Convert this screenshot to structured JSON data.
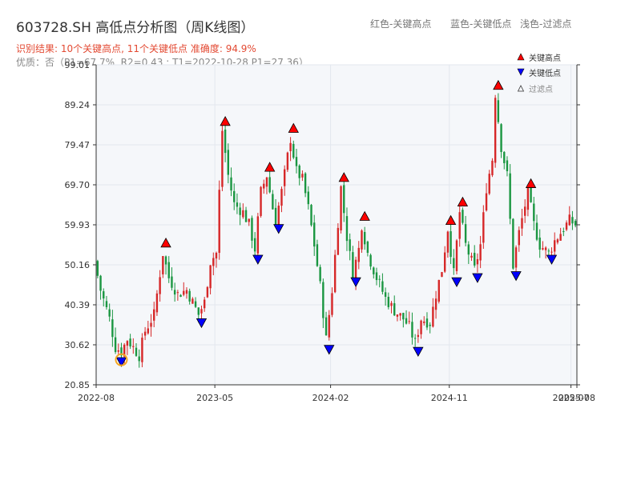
{
  "header": {
    "title": "603728.SH 高低点分析图（周K线图）",
    "summary": "识别结果: 10个关键高点, 11个关键低点  准确度: 94.9%",
    "quality": "优质：否（P1=67.7%, R2=0.43 ; T1=2022-10-28 P1=27.36）",
    "legend_red": "红色-关键高点",
    "legend_blue": "蓝色-关键低点",
    "legend_faint": "浅色-过滤点"
  },
  "colors": {
    "up": "#d62728",
    "down": "#1a9641",
    "high_marker": "#ff0000",
    "low_marker": "#0000ff",
    "highlight_ring": "#f5a623",
    "plot_bg": "#f5f7fa",
    "grid": "#e3e7ee"
  },
  "chart_data": {
    "type": "candlestick",
    "y_ticks": [
      "99.01",
      "89.24",
      "79.47",
      "69.70",
      "59.93",
      "50.16",
      "40.39",
      "30.62",
      "20.85"
    ],
    "ylim": [
      20.85,
      99.01
    ],
    "x_ticks": [
      "2022-08",
      "2023-05",
      "2024-02",
      "2024-11",
      "2025-07",
      "2025-08"
    ],
    "x_tick_weeks": [
      0,
      40,
      79,
      119,
      160,
      162
    ],
    "total_weeks": 162,
    "legend": {
      "high": "关键高点",
      "low": "关键低点",
      "filtered": "过滤点"
    },
    "key_highs": [
      {
        "week": 23,
        "price": 54.5
      },
      {
        "week": 43,
        "price": 84.2
      },
      {
        "week": 58,
        "price": 73.0
      },
      {
        "week": 66,
        "price": 82.5
      },
      {
        "week": 83,
        "price": 70.5
      },
      {
        "week": 90,
        "price": 61.0
      },
      {
        "week": 119,
        "price": 60.0
      },
      {
        "week": 123,
        "price": 64.5
      },
      {
        "week": 135,
        "price": 93.0
      },
      {
        "week": 146,
        "price": 69.0
      }
    ],
    "key_lows": [
      {
        "week": 8,
        "price": 27.5
      },
      {
        "week": 35,
        "price": 37.0
      },
      {
        "week": 54,
        "price": 52.5
      },
      {
        "week": 61,
        "price": 60.0
      },
      {
        "week": 78,
        "price": 30.5
      },
      {
        "week": 87,
        "price": 47.0
      },
      {
        "week": 108,
        "price": 30.0
      },
      {
        "week": 121,
        "price": 47.0
      },
      {
        "week": 128,
        "price": 48.0
      },
      {
        "week": 141,
        "price": 48.5
      },
      {
        "week": 153,
        "price": 52.5
      }
    ],
    "highlight": {
      "week": 8,
      "price": 27.36
    },
    "anchors": [
      [
        0,
        51
      ],
      [
        2,
        44
      ],
      [
        5,
        37
      ],
      [
        7,
        30
      ],
      [
        9,
        29
      ],
      [
        11,
        32
      ],
      [
        13,
        30
      ],
      [
        15,
        28
      ],
      [
        17,
        34
      ],
      [
        20,
        38
      ],
      [
        23,
        53
      ],
      [
        25,
        47
      ],
      [
        28,
        43
      ],
      [
        31,
        44
      ],
      [
        33,
        41
      ],
      [
        35,
        38
      ],
      [
        37,
        41
      ],
      [
        39,
        51
      ],
      [
        41,
        53
      ],
      [
        43,
        83
      ],
      [
        45,
        72
      ],
      [
        47,
        65
      ],
      [
        50,
        63
      ],
      [
        52,
        60
      ],
      [
        54,
        54
      ],
      [
        56,
        68
      ],
      [
        58,
        72
      ],
      [
        60,
        64
      ],
      [
        61,
        61
      ],
      [
        63,
        68
      ],
      [
        66,
        81
      ],
      [
        68,
        73
      ],
      [
        70,
        71
      ],
      [
        72,
        64
      ],
      [
        74,
        55
      ],
      [
        76,
        45
      ],
      [
        78,
        32
      ],
      [
        80,
        44
      ],
      [
        83,
        69
      ],
      [
        85,
        57
      ],
      [
        87,
        48
      ],
      [
        89,
        54
      ],
      [
        90,
        60
      ],
      [
        92,
        53
      ],
      [
        95,
        47
      ],
      [
        98,
        42
      ],
      [
        101,
        39
      ],
      [
        104,
        37
      ],
      [
        106,
        35
      ],
      [
        108,
        31
      ],
      [
        110,
        37
      ],
      [
        113,
        36
      ],
      [
        115,
        43
      ],
      [
        117,
        49
      ],
      [
        119,
        59
      ],
      [
        121,
        48
      ],
      [
        123,
        63
      ],
      [
        125,
        55
      ],
      [
        128,
        49
      ],
      [
        130,
        55
      ],
      [
        132,
        69
      ],
      [
        134,
        76
      ],
      [
        135,
        92
      ],
      [
        137,
        79
      ],
      [
        139,
        72
      ],
      [
        141,
        50
      ],
      [
        143,
        58
      ],
      [
        146,
        68
      ],
      [
        148,
        60
      ],
      [
        150,
        55
      ],
      [
        153,
        53
      ],
      [
        155,
        56
      ],
      [
        158,
        59
      ],
      [
        160,
        61
      ],
      [
        162,
        60
      ]
    ]
  }
}
